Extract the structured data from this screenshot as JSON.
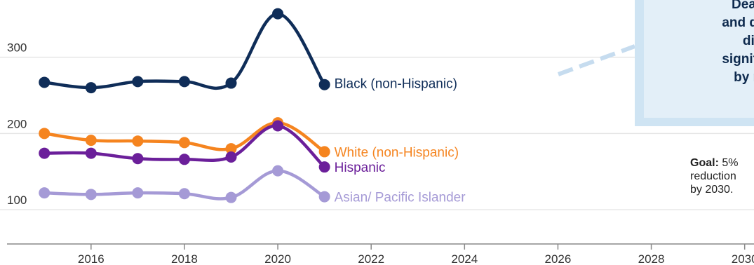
{
  "chart_data": {
    "type": "line",
    "x": [
      2015,
      2016,
      2017,
      2018,
      2019,
      2020,
      2021
    ],
    "xticks": [
      "2016",
      "2018",
      "2020",
      "2022",
      "2024",
      "2026",
      "2028",
      "2030"
    ],
    "xlim": [
      2014.2,
      2030.2
    ],
    "yticks": [
      "100",
      "200",
      "300"
    ],
    "ylim": [
      55,
      375
    ],
    "grid": true,
    "series": [
      {
        "name": "Black (non-Hispanic)",
        "color": "#0f2d58",
        "values": [
          267,
          260,
          268,
          268,
          266,
          357,
          264
        ]
      },
      {
        "name": "White (non-Hispanic)",
        "color": "#f5841f",
        "values": [
          200,
          191,
          190,
          188,
          180,
          214,
          176
        ]
      },
      {
        "name": "Hispanic",
        "color": "#6b1f9a",
        "values": [
          174,
          174,
          167,
          166,
          169,
          210,
          156
        ]
      },
      {
        "name": "Asian/ Pacific Islander",
        "color": "#a59ad6",
        "values": [
          122,
          120,
          122,
          121,
          116,
          151,
          117
        ]
      }
    ]
  },
  "callout": {
    "text": "Deaths f\nand diabe\ndiseas\nsignifican\nby race/"
  },
  "goal": {
    "label": "Goal:",
    "value": "5%",
    "line2": "reduction",
    "line3": "by 2030."
  }
}
